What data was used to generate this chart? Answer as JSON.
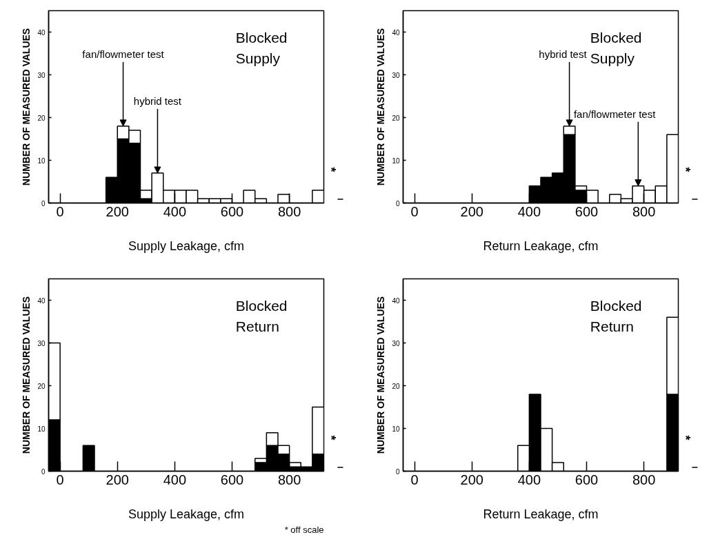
{
  "chart_data": [
    {
      "type": "bar",
      "stacked": true,
      "xlabel": "Supply Leakage, cfm",
      "ylabel": "NUMBER OF MEASURED VALUES",
      "xlim": [
        -40,
        920
      ],
      "ylim": [
        0,
        45
      ],
      "xticks": [
        0,
        200,
        400,
        600,
        800
      ],
      "yticks": [
        0,
        10,
        20,
        30,
        40
      ],
      "grid": false,
      "x": [
        180,
        220,
        260,
        300,
        340,
        380,
        420,
        460,
        500,
        540,
        580,
        660,
        700,
        780,
        900
      ],
      "series": [
        {
          "color": "#000000",
          "values": [
            6,
            15,
            14,
            1,
            0,
            0,
            0,
            0,
            0,
            0,
            0,
            0,
            0,
            0,
            0
          ]
        },
        {
          "color": "#ffffff",
          "values": [
            0,
            3,
            3,
            2,
            7,
            3,
            3,
            3,
            1,
            1,
            1,
            3,
            1,
            2,
            3
          ]
        }
      ],
      "annotations": [
        "Blocked Supply",
        "*",
        {
          "text": "fan/flowmeter test",
          "x": 220,
          "y": 18
        },
        {
          "text": "hybrid test",
          "x": 340,
          "y": 7
        }
      ]
    },
    {
      "type": "bar",
      "stacked": true,
      "xlabel": "Return Leakage, cfm",
      "ylabel": "NUMBER OF MEASURED VALUES",
      "xlim": [
        -40,
        920
      ],
      "ylim": [
        0,
        45
      ],
      "xticks": [
        0,
        200,
        400,
        600,
        800
      ],
      "yticks": [
        0,
        10,
        20,
        30,
        40
      ],
      "grid": false,
      "x": [
        420,
        460,
        500,
        540,
        580,
        620,
        700,
        740,
        780,
        820,
        860,
        900
      ],
      "series": [
        {
          "color": "#000000",
          "values": [
            4,
            6,
            7,
            16,
            3,
            0,
            0,
            0,
            0,
            0,
            0,
            0
          ]
        },
        {
          "color": "#ffffff",
          "values": [
            0,
            0,
            0,
            2,
            1,
            3,
            2,
            1,
            4,
            3,
            4,
            16
          ]
        }
      ],
      "annotations": [
        "Blocked Supply",
        "*",
        {
          "text": "hybrid test",
          "x": 540,
          "y": 18
        },
        {
          "text": "fan/flowmeter test",
          "x": 780,
          "y": 4
        }
      ]
    },
    {
      "type": "bar",
      "stacked": true,
      "xlabel": "Supply Leakage, cfm",
      "ylabel": "NUMBER OF MEASURED VALUES",
      "xlim": [
        -40,
        920
      ],
      "ylim": [
        0,
        45
      ],
      "xticks": [
        0,
        200,
        400,
        600,
        800
      ],
      "yticks": [
        0,
        10,
        20,
        30,
        40
      ],
      "grid": false,
      "x": [
        -20,
        100,
        700,
        740,
        780,
        820,
        860,
        900
      ],
      "series": [
        {
          "color": "#000000",
          "values": [
            12,
            6,
            2,
            6,
            4,
            1,
            1,
            4
          ]
        },
        {
          "color": "#ffffff",
          "values": [
            18,
            0,
            1,
            3,
            2,
            1,
            0,
            11
          ]
        }
      ],
      "annotations": [
        "Blocked Return",
        "*",
        "* off scale"
      ]
    },
    {
      "type": "bar",
      "stacked": true,
      "xlabel": "Return Leakage, cfm",
      "ylabel": "NUMBER OF MEASURED VALUES",
      "xlim": [
        -40,
        920
      ],
      "ylim": [
        0,
        45
      ],
      "xticks": [
        0,
        200,
        400,
        600,
        800
      ],
      "yticks": [
        0,
        10,
        20,
        30,
        40
      ],
      "grid": false,
      "x": [
        380,
        420,
        460,
        500,
        900
      ],
      "series": [
        {
          "color": "#000000",
          "values": [
            0,
            18,
            0,
            0,
            18
          ]
        },
        {
          "color": "#ffffff",
          "values": [
            6,
            0,
            10,
            2,
            18
          ]
        }
      ],
      "annotations": [
        "Blocked Return",
        "*"
      ]
    }
  ]
}
